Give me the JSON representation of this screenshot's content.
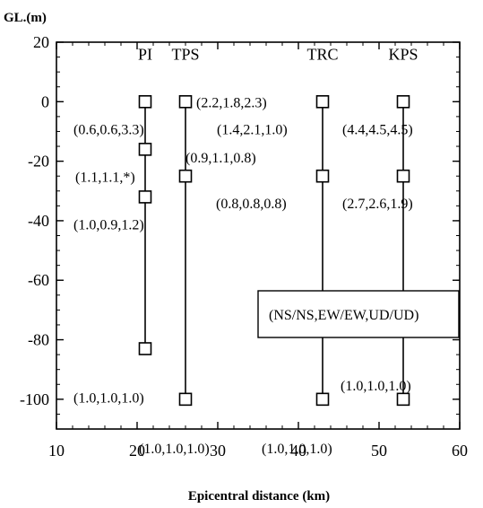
{
  "chart_data": {
    "type": "scatter",
    "title": "",
    "unit_label": "GL.(m)",
    "xlabel": "Epicentral distance (km)",
    "ylabel": "",
    "xlim": [
      10,
      60
    ],
    "ylim": [
      -110,
      20
    ],
    "x_ticks": [
      10,
      20,
      30,
      40,
      50,
      60
    ],
    "y_ticks": [
      20,
      0,
      -20,
      -40,
      -60,
      -80,
      -100
    ],
    "grid": false,
    "legend": "(NS/NS,EW/EW,UD/UD)",
    "stations": [
      {
        "name": "PI",
        "x": 21,
        "points": [
          {
            "depth": 0,
            "label": "(0.6,0.6,3.3)"
          },
          {
            "depth": -16,
            "label": "(1.1,1.1,*)"
          },
          {
            "depth": -32,
            "label": "(1.0,0.9,1.2)"
          },
          {
            "depth": -83,
            "label": "(1.0,1.0,1.0)"
          }
        ]
      },
      {
        "name": "TPS",
        "x": 26,
        "points": [
          {
            "depth": 0,
            "label": "(2.2,1.8,2.3)"
          },
          {
            "depth": -25,
            "label": "(0.9,1.1,0.8)"
          },
          {
            "depth": -100,
            "label": "(1.0,1.0,1.0)"
          }
        ]
      },
      {
        "name": "TRC",
        "x": 43,
        "points": [
          {
            "depth": 0,
            "label": "(1.4,2.1,1.0)"
          },
          {
            "depth": -25,
            "label": "(0.8,0.8,0.8)"
          },
          {
            "depth": -100,
            "label": "(1.0,1.0,1.0)"
          }
        ]
      },
      {
        "name": "KPS",
        "x": 53,
        "points": [
          {
            "depth": 0,
            "label": "(4.4,4.5,4.5)"
          },
          {
            "depth": -25,
            "label": "(2.7,2.6,1.9)"
          },
          {
            "depth": -100,
            "label": "(1.0,1.0,1.0)"
          }
        ]
      }
    ]
  }
}
